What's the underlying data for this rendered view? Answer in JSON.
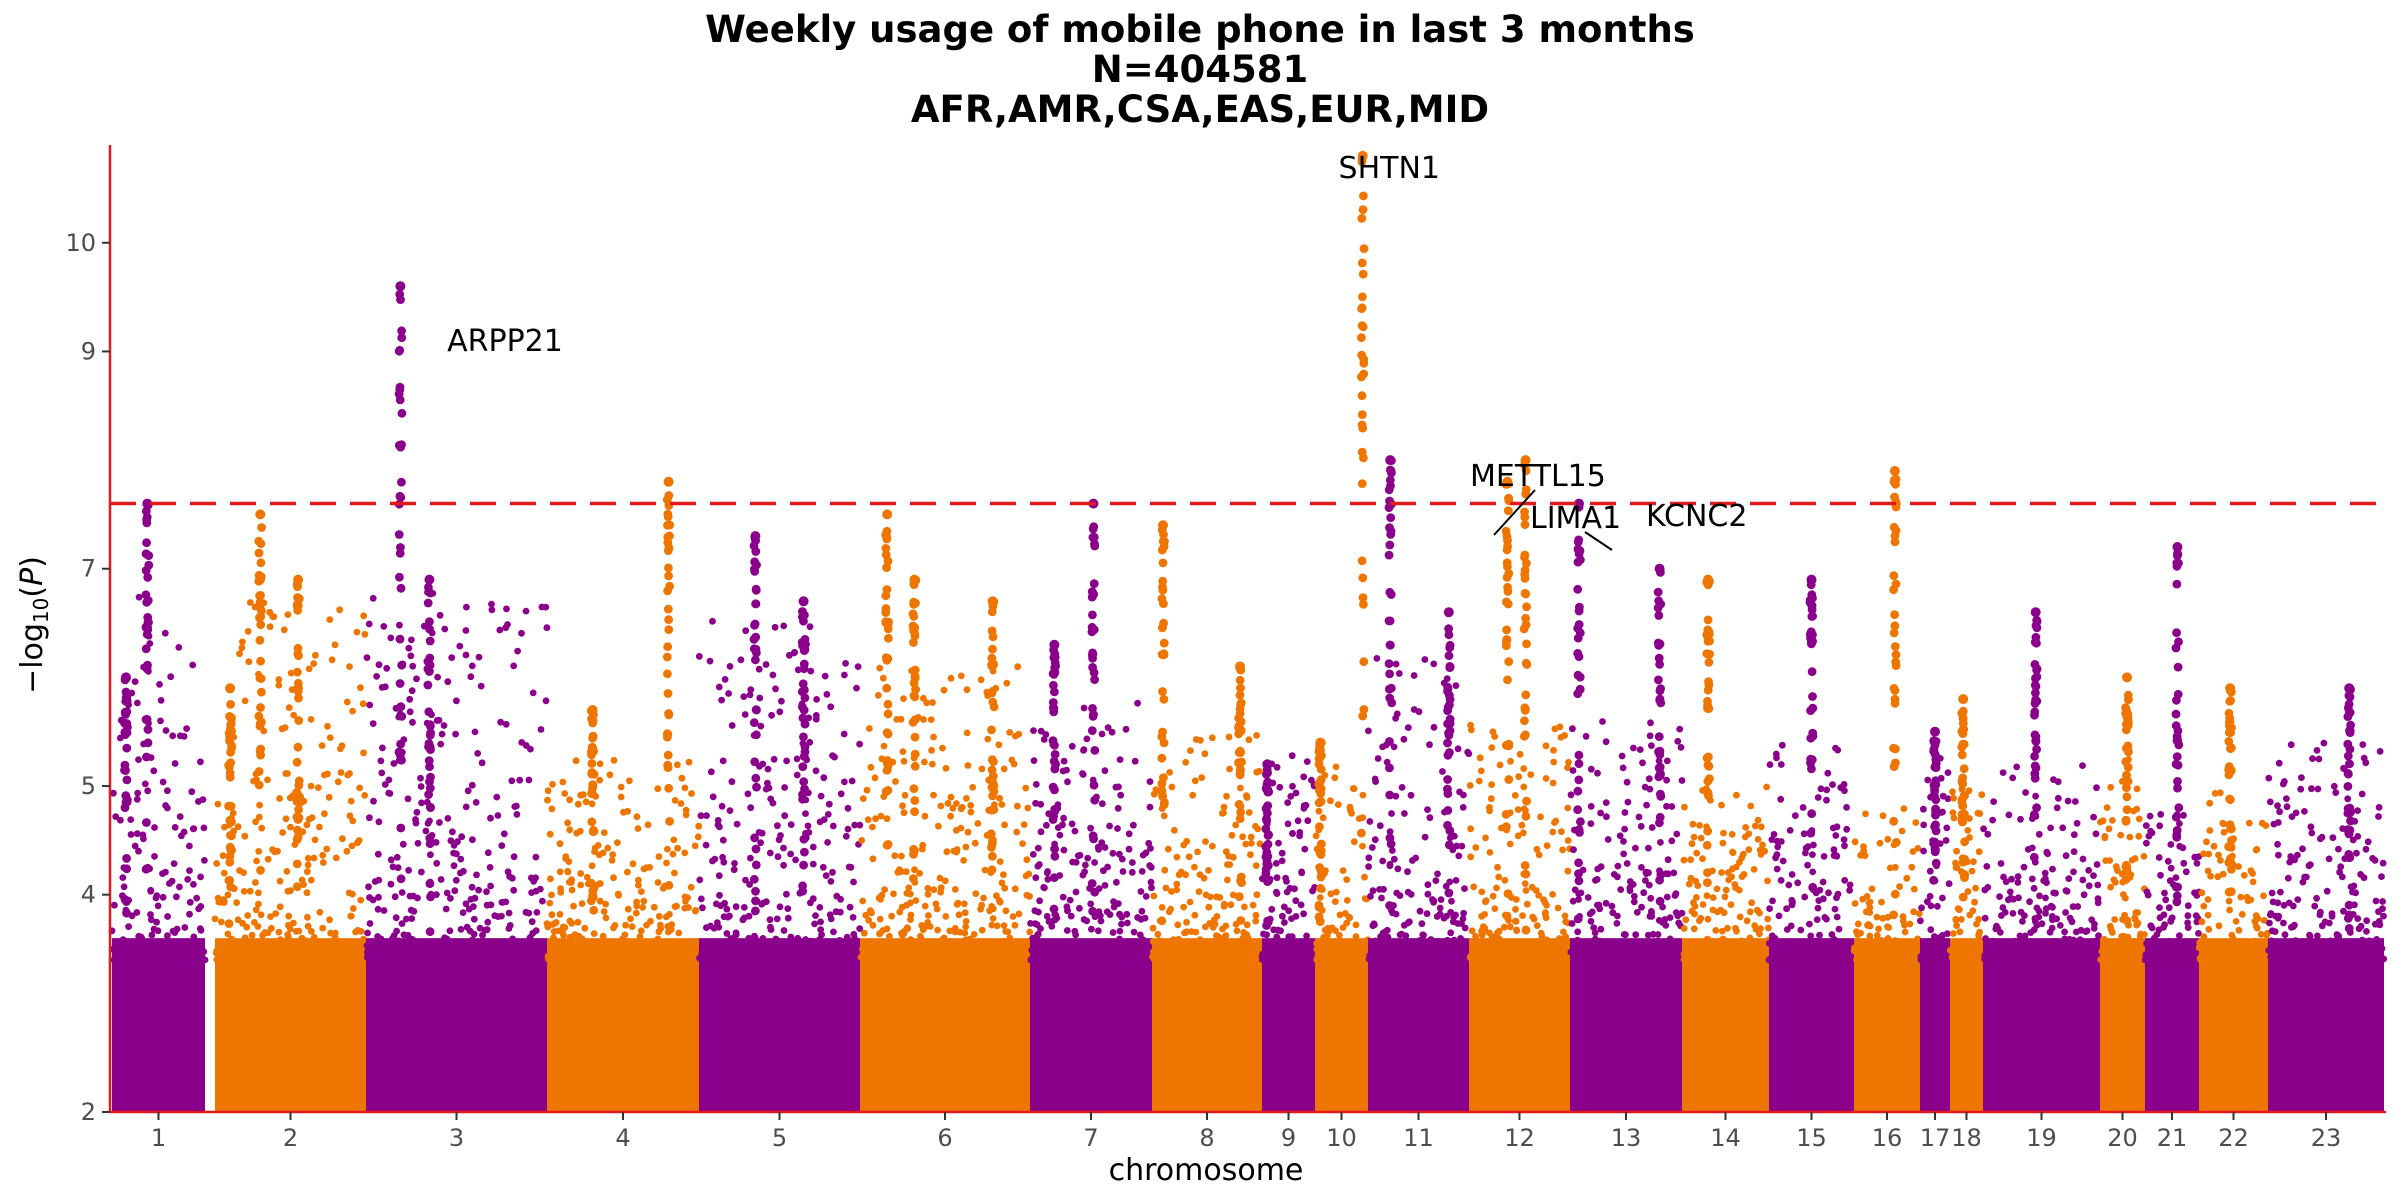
{
  "chart_data": {
    "type": "scatter",
    "subtype": "manhattan",
    "title_lines": [
      "Weekly usage of mobile phone in last 3 months",
      "N=404581",
      "AFR,AMR,CSA,EAS,EUR,MID"
    ],
    "xlabel": "chromosome",
    "ylabel": "-log10(P)",
    "ylim": [
      2,
      10.9
    ],
    "yticks": [
      2,
      4,
      5,
      7,
      9,
      10
    ],
    "yticks_note_printed_as": [
      "2",
      "4",
      "5",
      "7",
      "9",
      "10"
    ],
    "significance_line": 7.6,
    "colors": {
      "odd": "#8B008B",
      "even": "#EE7600",
      "threshold": "#E31A1C",
      "axis": "#E31A1C"
    },
    "grid": false,
    "chromosomes": [
      {
        "label": "1",
        "peak": 6.8,
        "loci": [
          {
            "pos": 0.38,
            "top": 7.6
          },
          {
            "pos": 0.15,
            "top": 6.0
          }
        ]
      },
      {
        "label": "2",
        "peak": 6.7,
        "loci": [
          {
            "pos": 0.3,
            "top": 7.5
          },
          {
            "pos": 0.55,
            "top": 6.9
          },
          {
            "pos": 0.1,
            "top": 5.9
          }
        ]
      },
      {
        "label": "3",
        "peak": 6.8,
        "loci": [
          {
            "pos": 0.19,
            "top": 9.6
          },
          {
            "pos": 0.35,
            "top": 6.9
          }
        ]
      },
      {
        "label": "4",
        "peak": 5.3,
        "loci": [
          {
            "pos": 0.8,
            "top": 7.8
          },
          {
            "pos": 0.3,
            "top": 5.7
          }
        ]
      },
      {
        "label": "5",
        "peak": 6.6,
        "loci": [
          {
            "pos": 0.35,
            "top": 7.3
          },
          {
            "pos": 0.65,
            "top": 6.7
          }
        ]
      },
      {
        "label": "6",
        "peak": 6.1,
        "loci": [
          {
            "pos": 0.16,
            "top": 7.5
          },
          {
            "pos": 0.32,
            "top": 6.9
          },
          {
            "pos": 0.78,
            "top": 6.7
          }
        ]
      },
      {
        "label": "7",
        "peak": 5.8,
        "loci": [
          {
            "pos": 0.52,
            "top": 7.6
          },
          {
            "pos": 0.2,
            "top": 6.3
          }
        ]
      },
      {
        "label": "8",
        "peak": 5.5,
        "loci": [
          {
            "pos": 0.1,
            "top": 7.4
          },
          {
            "pos": 0.8,
            "top": 6.1
          }
        ]
      },
      {
        "label": "9",
        "peak": 5.3,
        "loci": [
          {
            "pos": 0.1,
            "top": 5.2
          }
        ]
      },
      {
        "label": "10",
        "peak": 5.5,
        "loci": [
          {
            "pos": 0.9,
            "top": 10.8
          },
          {
            "pos": 0.1,
            "top": 5.4
          }
        ]
      },
      {
        "label": "11",
        "peak": 6.2,
        "loci": [
          {
            "pos": 0.22,
            "top": 8.0
          },
          {
            "pos": 0.8,
            "top": 6.6
          }
        ]
      },
      {
        "label": "12",
        "peak": 5.6,
        "loci": [
          {
            "pos": 0.38,
            "top": 7.8
          },
          {
            "pos": 0.56,
            "top": 8.0
          }
        ]
      },
      {
        "label": "13",
        "peak": 5.6,
        "loci": [
          {
            "pos": 0.08,
            "top": 7.6
          },
          {
            "pos": 0.8,
            "top": 7.0
          }
        ]
      },
      {
        "label": "14",
        "peak": 5.0,
        "loci": [
          {
            "pos": 0.3,
            "top": 6.9
          }
        ]
      },
      {
        "label": "15",
        "peak": 5.4,
        "loci": [
          {
            "pos": 0.5,
            "top": 6.9
          }
        ]
      },
      {
        "label": "16",
        "peak": 4.8,
        "loci": [
          {
            "pos": 0.62,
            "top": 7.9
          }
        ]
      },
      {
        "label": "17",
        "peak": 5.3,
        "loci": [
          {
            "pos": 0.5,
            "top": 5.5
          }
        ]
      },
      {
        "label": "18",
        "peak": 5.1,
        "loci": [
          {
            "pos": 0.4,
            "top": 5.8
          }
        ]
      },
      {
        "label": "19",
        "peak": 5.2,
        "loci": [
          {
            "pos": 0.45,
            "top": 6.6
          }
        ]
      },
      {
        "label": "20",
        "peak": 5.3,
        "loci": [
          {
            "pos": 0.6,
            "top": 6.0
          }
        ]
      },
      {
        "label": "21",
        "peak": 4.8,
        "loci": [
          {
            "pos": 0.6,
            "top": 7.2
          }
        ]
      },
      {
        "label": "22",
        "peak": 5.0,
        "loci": [
          {
            "pos": 0.45,
            "top": 5.9
          }
        ]
      },
      {
        "label": "23",
        "peak": 5.4,
        "loci": [
          {
            "pos": 0.7,
            "top": 5.9
          }
        ]
      }
    ],
    "annotations": [
      {
        "text": "ARPP21",
        "chromosome": "3",
        "value": 9.6
      },
      {
        "text": "SHTN1",
        "chromosome": "10",
        "value": 10.8
      },
      {
        "text": "METTL15",
        "chromosome": "11",
        "value": 8.0
      },
      {
        "text": "LIMA1",
        "chromosome": "12",
        "value": 7.8
      },
      {
        "text": "KCNC2",
        "chromosome": "12",
        "value": 8.0
      }
    ]
  }
}
